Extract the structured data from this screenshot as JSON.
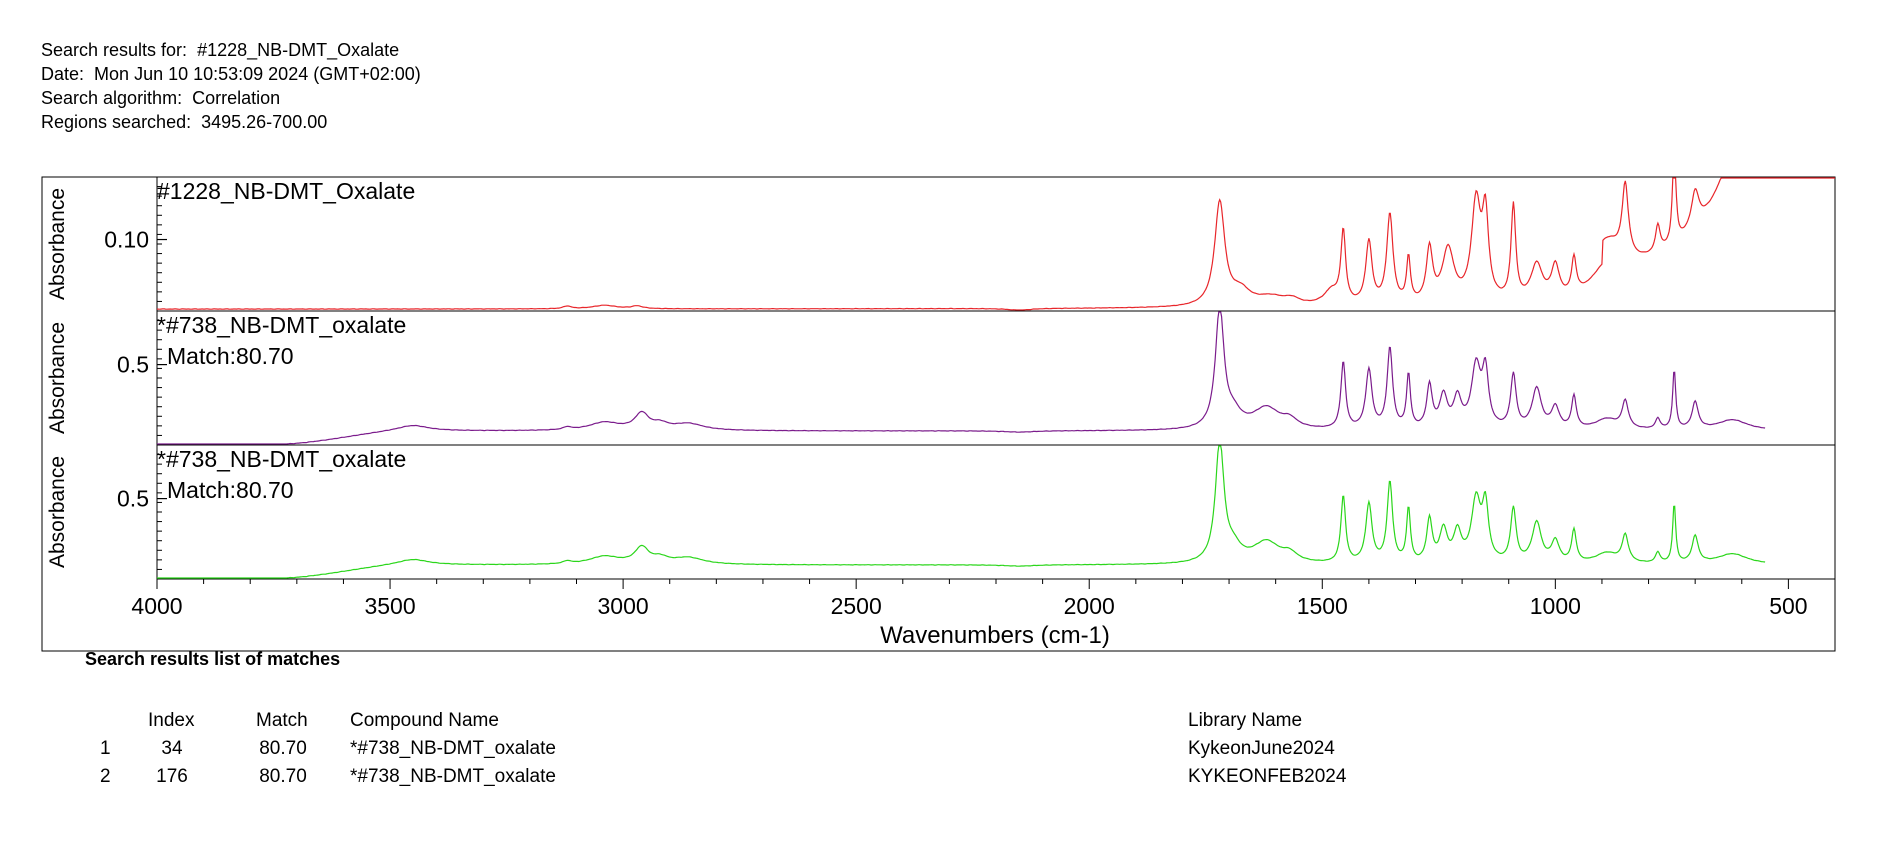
{
  "header": {
    "line1_label": "Search results for:",
    "line1_value": "#1228_NB-DMT_Oxalate",
    "line2_label": "Date:",
    "line2_value": "Mon Jun 10 10:53:09 2024 (GMT+02:00)",
    "line3_label": "Search algorithm:",
    "line3_value": "Correlation",
    "line4_label": "Regions searched:",
    "line4_value": "3495.26-700.00"
  },
  "chart_data": {
    "type": "line",
    "xlabel": "Wavenumbers (cm-1)",
    "xlim": [
      4000,
      400
    ],
    "x_ticks": [
      4000,
      3500,
      3000,
      2500,
      2000,
      1500,
      1000,
      500
    ],
    "x_tick_labels": [
      "4000",
      "3500",
      "3000",
      "2500",
      "2000",
      "1500",
      "1000",
      "500"
    ],
    "grid": false,
    "panels": [
      {
        "name": "#1228_NB-DMT_Oxalate",
        "subtitle": "",
        "ylabel": "Absorbance",
        "color": "#e8262b",
        "ylim": [
          0.06,
          0.135
        ],
        "y_tick": 0.1,
        "y_tick_label": "0.10",
        "baseline": 0.061,
        "ramp": [],
        "bumps": [],
        "x_end": 400,
        "tail": 0.09,
        "peaks": [
          [
            3120,
            0.0015,
            10
          ],
          [
            3040,
            0.002,
            30
          ],
          [
            2970,
            0.0015,
            15
          ],
          [
            2150,
            -0.001,
            30
          ],
          [
            1720,
            0.058,
            13
          ],
          [
            1675,
            0.008,
            25
          ],
          [
            1610,
            0.005,
            40
          ],
          [
            1565,
            0.003,
            20
          ],
          [
            1480,
            0.008,
            20
          ],
          [
            1455,
            0.04,
            6
          ],
          [
            1400,
            0.035,
            8
          ],
          [
            1355,
            0.05,
            8
          ],
          [
            1315,
            0.025,
            5
          ],
          [
            1270,
            0.03,
            8
          ],
          [
            1230,
            0.03,
            15
          ],
          [
            1170,
            0.055,
            12
          ],
          [
            1150,
            0.045,
            8
          ],
          [
            1090,
            0.053,
            6
          ],
          [
            1040,
            0.02,
            15
          ],
          [
            1000,
            0.018,
            10
          ],
          [
            960,
            0.02,
            6
          ],
          [
            890,
            0.02,
            40
          ],
          [
            850,
            0.04,
            8
          ],
          [
            780,
            0.015,
            6
          ],
          [
            745,
            0.06,
            4
          ],
          [
            700,
            0.02,
            10
          ],
          [
            620,
            0.022,
            40
          ],
          [
            540,
            0.025,
            40
          ],
          [
            480,
            0.07,
            25
          ],
          [
            430,
            0.045,
            15
          ]
        ]
      },
      {
        "name": "*#738_NB-DMT_oxalate",
        "subtitle": "Match:80.70",
        "ylabel": "Absorbance",
        "color": "#7b1c8c",
        "ylim": [
          0.2,
          0.7
        ],
        "y_tick": 0.5,
        "y_tick_label": "0.5",
        "baseline": 0.202,
        "ramp": [
          3750,
          3450,
          0.05
        ],
        "bumps": [
          [
            3450,
            0.02,
            40
          ],
          [
            3120,
            0.01,
            10
          ],
          [
            3040,
            0.03,
            40
          ],
          [
            2960,
            0.06,
            18
          ],
          [
            2920,
            0.02,
            20
          ],
          [
            2860,
            0.025,
            40
          ],
          [
            2150,
            -0.005,
            40
          ]
        ],
        "x_end": 550,
        "tail": 0.0,
        "peaks": [
          [
            1720,
            0.45,
            11
          ],
          [
            1690,
            0.05,
            20
          ],
          [
            1620,
            0.08,
            35
          ],
          [
            1570,
            0.03,
            20
          ],
          [
            1455,
            0.25,
            6
          ],
          [
            1400,
            0.22,
            8
          ],
          [
            1355,
            0.3,
            7
          ],
          [
            1315,
            0.2,
            5
          ],
          [
            1270,
            0.16,
            7
          ],
          [
            1240,
            0.12,
            10
          ],
          [
            1210,
            0.11,
            10
          ],
          [
            1170,
            0.23,
            12
          ],
          [
            1150,
            0.2,
            8
          ],
          [
            1090,
            0.2,
            7
          ],
          [
            1040,
            0.15,
            12
          ],
          [
            1000,
            0.08,
            10
          ],
          [
            960,
            0.12,
            6
          ],
          [
            890,
            0.04,
            30
          ],
          [
            850,
            0.1,
            8
          ],
          [
            780,
            0.04,
            6
          ],
          [
            745,
            0.22,
            4
          ],
          [
            700,
            0.1,
            8
          ],
          [
            620,
            0.04,
            40
          ]
        ]
      },
      {
        "name": "*#738_NB-DMT_oxalate",
        "subtitle": "Match:80.70",
        "ylabel": "Absorbance",
        "color": "#2bd61b",
        "ylim": [
          0.2,
          0.7
        ],
        "y_tick": 0.5,
        "y_tick_label": "0.5",
        "baseline": 0.202,
        "ramp": [
          3750,
          3450,
          0.05
        ],
        "bumps": [
          [
            3450,
            0.02,
            40
          ],
          [
            3120,
            0.01,
            10
          ],
          [
            3040,
            0.03,
            40
          ],
          [
            2960,
            0.06,
            18
          ],
          [
            2920,
            0.02,
            20
          ],
          [
            2860,
            0.025,
            40
          ],
          [
            2150,
            -0.005,
            40
          ]
        ],
        "x_end": 550,
        "tail": 0.0,
        "peaks": [
          [
            1720,
            0.45,
            11
          ],
          [
            1690,
            0.05,
            20
          ],
          [
            1620,
            0.08,
            35
          ],
          [
            1570,
            0.03,
            20
          ],
          [
            1455,
            0.25,
            6
          ],
          [
            1400,
            0.22,
            8
          ],
          [
            1355,
            0.3,
            7
          ],
          [
            1315,
            0.2,
            5
          ],
          [
            1270,
            0.16,
            7
          ],
          [
            1240,
            0.12,
            10
          ],
          [
            1210,
            0.11,
            10
          ],
          [
            1170,
            0.23,
            12
          ],
          [
            1150,
            0.2,
            8
          ],
          [
            1090,
            0.2,
            7
          ],
          [
            1040,
            0.15,
            12
          ],
          [
            1000,
            0.08,
            10
          ],
          [
            960,
            0.12,
            6
          ],
          [
            890,
            0.04,
            30
          ],
          [
            850,
            0.1,
            8
          ],
          [
            780,
            0.04,
            6
          ],
          [
            745,
            0.22,
            4
          ],
          [
            700,
            0.1,
            8
          ],
          [
            620,
            0.04,
            40
          ]
        ]
      }
    ]
  },
  "results": {
    "title": "Search results list of matches",
    "columns": {
      "index": "Index",
      "match": "Match",
      "compound": "Compound Name",
      "library": "Library Name"
    },
    "rows": [
      {
        "num": "1",
        "index": "34",
        "match": "80.70",
        "compound": "*#738_NB-DMT_oxalate",
        "library": "KykeonJune2024"
      },
      {
        "num": "2",
        "index": "176",
        "match": "80.70",
        "compound": "*#738_NB-DMT_oxalate",
        "library": "KYKEONFEB2024"
      }
    ]
  }
}
